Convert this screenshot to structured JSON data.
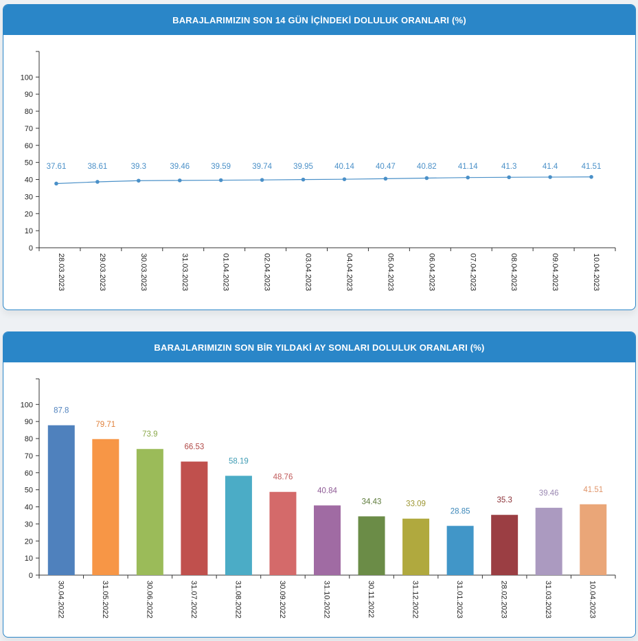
{
  "panels": {
    "line_title": "BARAJLARIMIZIN SON 14 GÜN İÇİNDEKİ DOLULUK ORANLARI (%)",
    "bar_title": "BARAJLARIMIZIN SON BİR YILDAKİ AY SONLARI DOLULUK ORANLARI (%)"
  },
  "chart_data": [
    {
      "type": "line",
      "title": "BARAJLARIMIZIN SON 14 GÜN İÇİNDEKİ DOLULUK ORANLARI (%)",
      "categories": [
        "28.03.2023",
        "29.03.2023",
        "30.03.2023",
        "31.03.2023",
        "01.04.2023",
        "02.04.2023",
        "03.04.2023",
        "04.04.2023",
        "05.04.2023",
        "06.04.2023",
        "07.04.2023",
        "08.04.2023",
        "09.04.2023",
        "10.04.2023"
      ],
      "values": [
        37.61,
        38.61,
        39.3,
        39.46,
        39.59,
        39.74,
        39.95,
        40.14,
        40.47,
        40.82,
        41.14,
        41.3,
        41.4,
        41.51
      ],
      "yticks": [
        0,
        10,
        20,
        30,
        40,
        50,
        60,
        70,
        80,
        90,
        100
      ],
      "ylim": [
        0,
        115
      ],
      "grid": false,
      "color": "#4a90c8"
    },
    {
      "type": "bar",
      "title": "BARAJLARIMIZIN SON BİR YILDAKİ AY SONLARI DOLULUK ORANLARI (%)",
      "categories": [
        "30.04.2022",
        "31.05.2022",
        "30.06.2022",
        "31.07.2022",
        "31.08.2022",
        "30.09.2022",
        "31.10.2022",
        "30.11.2022",
        "31.12.2022",
        "31.01.2023",
        "28.02.2023",
        "31.03.2023",
        "10.04.2023"
      ],
      "values": [
        87.8,
        79.71,
        73.9,
        66.53,
        58.19,
        48.76,
        40.84,
        34.43,
        33.09,
        28.85,
        35.3,
        39.46,
        41.51
      ],
      "colors": [
        "#4f81bd",
        "#f79646",
        "#9bbb59",
        "#c0504d",
        "#4bacc6",
        "#d46a6a",
        "#a06ba3",
        "#6b8c47",
        "#b0a93e",
        "#4196c8",
        "#9b3e43",
        "#ab9ac0",
        "#eaa678"
      ],
      "label_colors": [
        "#4f81bd",
        "#e0803a",
        "#8aa84a",
        "#b04846",
        "#3f9cb4",
        "#c05a5a",
        "#8e5a95",
        "#5c7a3a",
        "#9c9530",
        "#3a86b8",
        "#8c3238",
        "#9a88b2",
        "#e0956a"
      ],
      "yticks": [
        0,
        10,
        20,
        30,
        40,
        50,
        60,
        70,
        80,
        90,
        100
      ],
      "ylim": [
        0,
        115
      ],
      "grid": false
    }
  ]
}
